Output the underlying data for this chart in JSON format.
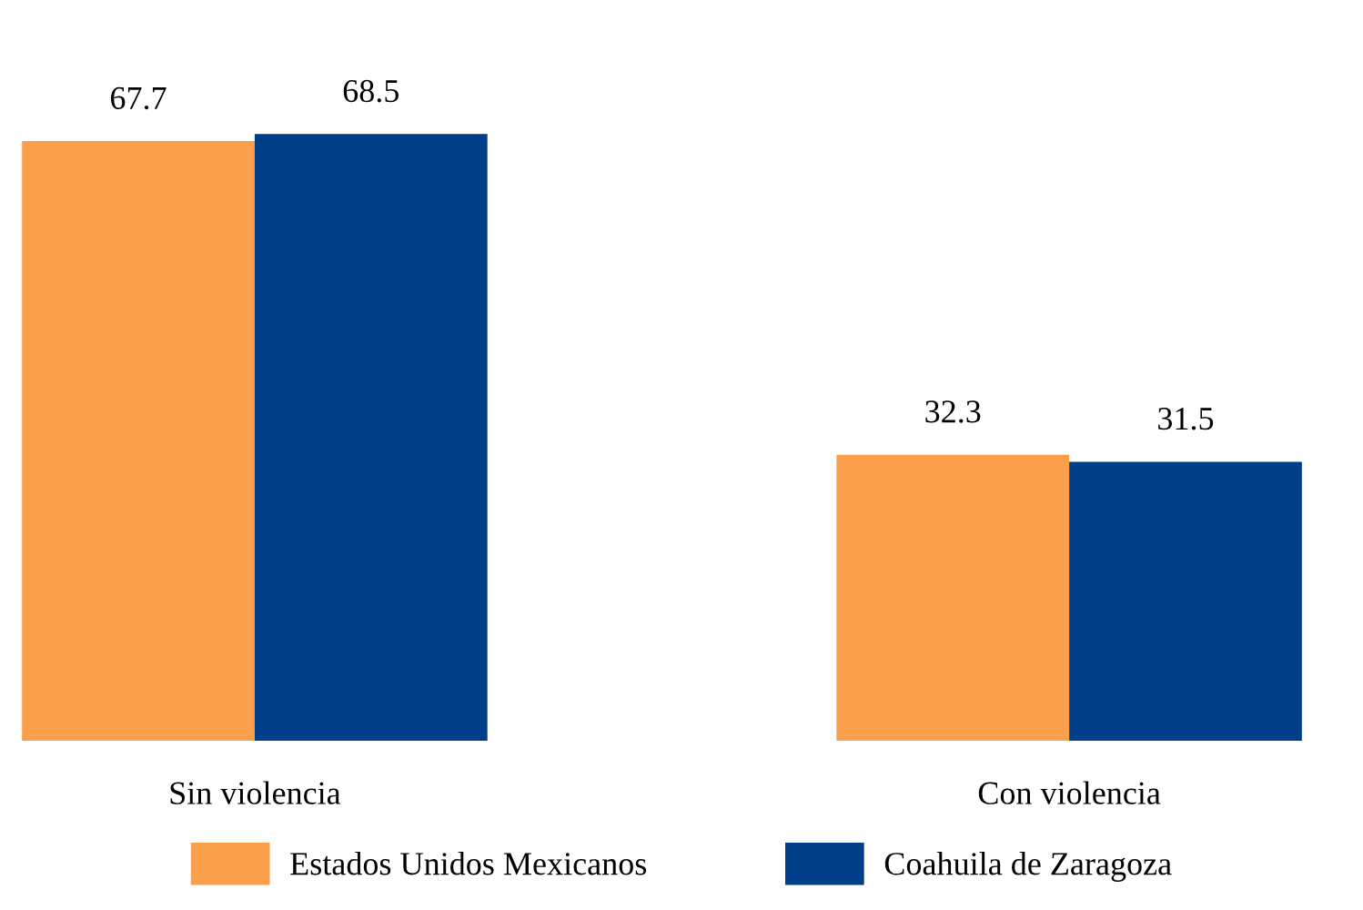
{
  "chart_data": {
    "type": "bar",
    "categories": [
      "Sin violencia",
      "Con violencia"
    ],
    "series": [
      {
        "name": "Estados Unidos Mexicanos",
        "color": "#fa9f4b",
        "values": [
          67.7,
          32.3
        ]
      },
      {
        "name": "Coahuila de Zaragoza",
        "color": "#003e8a",
        "values": [
          68.5,
          31.5
        ]
      }
    ],
    "data_labels": true,
    "legend": "bottom"
  }
}
